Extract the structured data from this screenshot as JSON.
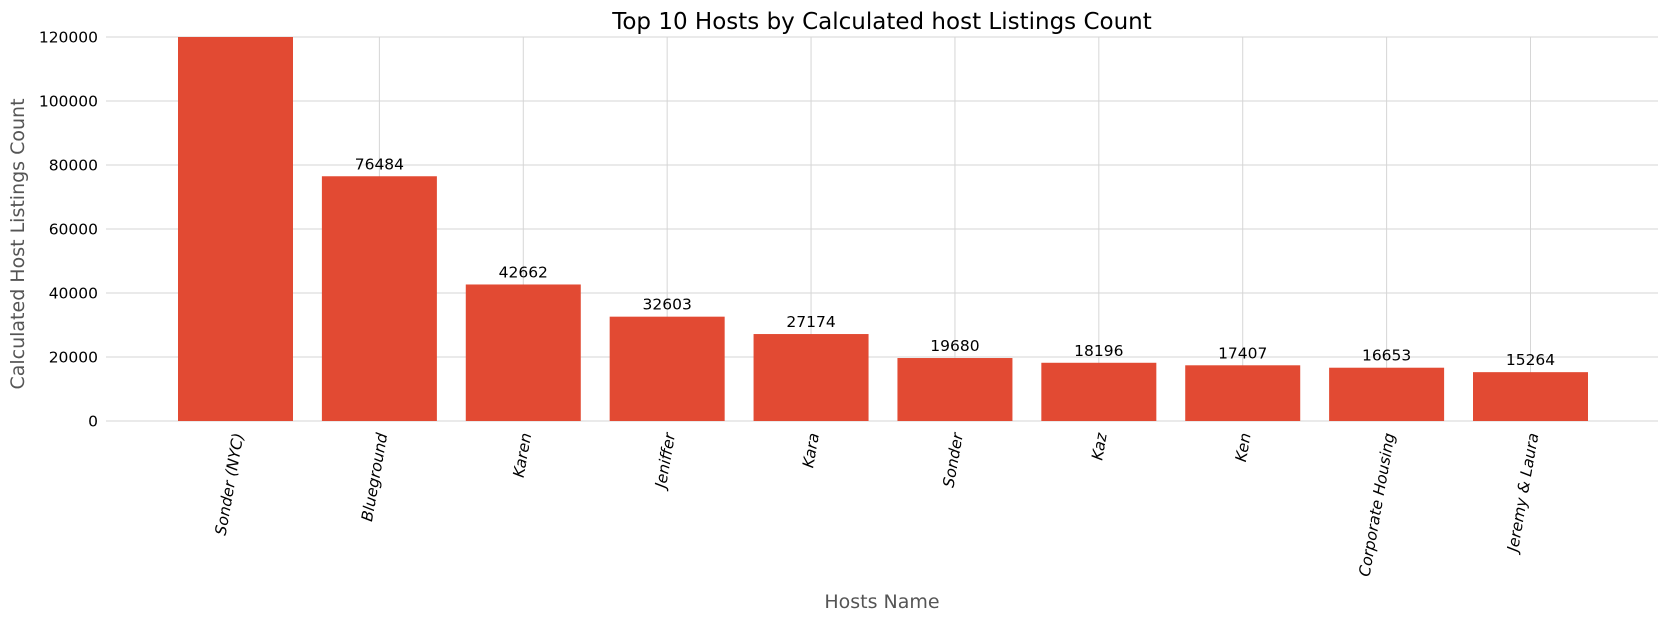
{
  "chart_data": {
    "type": "bar",
    "title": "Top 10 Hosts by Calculated host Listings Count",
    "xlabel": "Hosts Name",
    "ylabel": "Calculated Host Listings Count",
    "categories": [
      "Sonder (NYC)",
      "Blueground",
      "Karen",
      "Jeniffer",
      "Kara",
      "Sonder",
      "Kaz",
      "Ken",
      "Corporate Housing",
      "Jeremy & Laura"
    ],
    "values": [
      120000,
      76484,
      42662,
      32603,
      27174,
      19680,
      18196,
      17407,
      16653,
      15264
    ],
    "data_labels": [
      "",
      "76484",
      "42662",
      "32603",
      "27174",
      "19680",
      "18196",
      "17407",
      "16653",
      "15264"
    ],
    "ylim": [
      0,
      120000
    ],
    "yticks": [
      0,
      20000,
      40000,
      60000,
      80000,
      100000,
      120000
    ],
    "grid": true,
    "bar_color": "#e24a33",
    "grid_color": "#d6d6d6"
  }
}
